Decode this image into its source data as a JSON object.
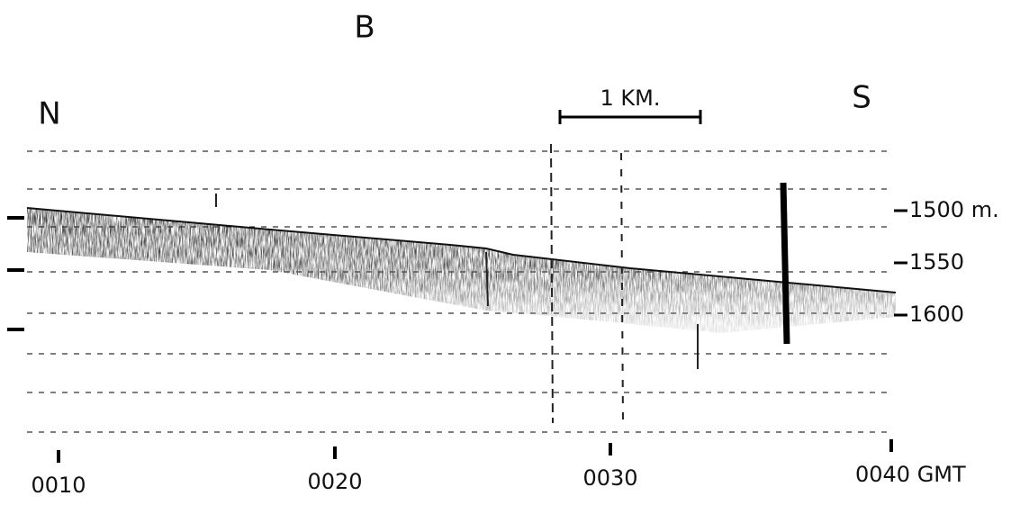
{
  "figure": {
    "panel_label": "B",
    "left_label": "N",
    "right_label": "S",
    "scale_bar": "1 KM.",
    "depth_labels": [
      "1500 m.",
      "1550",
      "1600"
    ],
    "time_labels": [
      "0010",
      "0020",
      "0030",
      "0040 GMT"
    ]
  }
}
